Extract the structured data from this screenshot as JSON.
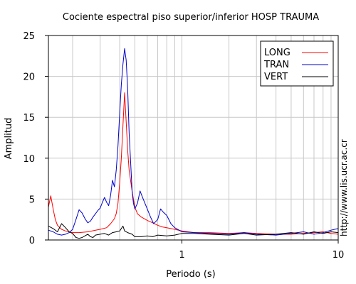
{
  "chart_data": {
    "type": "line",
    "title": "Cociente espectral piso superior/inferior  HOSP TRAUMA",
    "xlabel": "Periodo (s)",
    "ylabel": "Amplitud",
    "xscale": "log",
    "xlim": [
      0.14,
      10
    ],
    "ylim": [
      0,
      25
    ],
    "xticks": [
      {
        "v": 1,
        "label": "1"
      },
      {
        "v": 10,
        "label": "10"
      }
    ],
    "yticks": [
      0,
      5,
      10,
      15,
      20,
      25
    ],
    "grid": true,
    "legend_position": "top-right",
    "series": [
      {
        "name": "LONG",
        "color": "#ff0000",
        "points": [
          [
            0.14,
            4.0
          ],
          [
            0.145,
            5.4
          ],
          [
            0.15,
            3.8
          ],
          [
            0.155,
            2.5
          ],
          [
            0.16,
            1.8
          ],
          [
            0.17,
            1.3
          ],
          [
            0.18,
            1.1
          ],
          [
            0.2,
            0.9
          ],
          [
            0.22,
            0.9
          ],
          [
            0.25,
            1.0
          ],
          [
            0.28,
            1.2
          ],
          [
            0.3,
            1.3
          ],
          [
            0.33,
            1.5
          ],
          [
            0.35,
            2.0
          ],
          [
            0.37,
            2.6
          ],
          [
            0.38,
            3.2
          ],
          [
            0.39,
            4.5
          ],
          [
            0.4,
            7.0
          ],
          [
            0.41,
            10.0
          ],
          [
            0.42,
            14.0
          ],
          [
            0.43,
            18.0
          ],
          [
            0.44,
            14.5
          ],
          [
            0.45,
            11.0
          ],
          [
            0.46,
            8.5
          ],
          [
            0.48,
            6.0
          ],
          [
            0.5,
            4.0
          ],
          [
            0.52,
            3.2
          ],
          [
            0.55,
            2.8
          ],
          [
            0.6,
            2.4
          ],
          [
            0.65,
            2.1
          ],
          [
            0.7,
            1.8
          ],
          [
            0.75,
            1.6
          ],
          [
            0.8,
            1.5
          ],
          [
            0.9,
            1.3
          ],
          [
            1.0,
            1.1
          ],
          [
            1.2,
            0.9
          ],
          [
            1.5,
            0.9
          ],
          [
            2.0,
            0.8
          ],
          [
            2.5,
            0.9
          ],
          [
            3.0,
            0.8
          ],
          [
            4.0,
            0.7
          ],
          [
            5.0,
            0.7
          ],
          [
            6.0,
            0.8
          ],
          [
            7.0,
            0.9
          ],
          [
            8.0,
            1.0
          ],
          [
            9.0,
            0.8
          ],
          [
            10.0,
            0.7
          ]
        ]
      },
      {
        "name": "TRAN",
        "color": "#0000cc",
        "points": [
          [
            0.14,
            1.2
          ],
          [
            0.15,
            1.0
          ],
          [
            0.16,
            0.7
          ],
          [
            0.17,
            0.6
          ],
          [
            0.18,
            0.7
          ],
          [
            0.19,
            0.9
          ],
          [
            0.2,
            1.3
          ],
          [
            0.21,
            2.5
          ],
          [
            0.22,
            3.7
          ],
          [
            0.23,
            3.3
          ],
          [
            0.24,
            2.6
          ],
          [
            0.25,
            2.1
          ],
          [
            0.26,
            2.3
          ],
          [
            0.27,
            2.8
          ],
          [
            0.28,
            3.2
          ],
          [
            0.29,
            3.6
          ],
          [
            0.3,
            3.9
          ],
          [
            0.31,
            4.6
          ],
          [
            0.32,
            5.2
          ],
          [
            0.33,
            4.6
          ],
          [
            0.34,
            4.2
          ],
          [
            0.35,
            5.5
          ],
          [
            0.36,
            7.3
          ],
          [
            0.37,
            6.5
          ],
          [
            0.38,
            8.5
          ],
          [
            0.39,
            11.5
          ],
          [
            0.4,
            15.5
          ],
          [
            0.41,
            19.0
          ],
          [
            0.42,
            21.5
          ],
          [
            0.43,
            23.4
          ],
          [
            0.44,
            22.0
          ],
          [
            0.45,
            18.5
          ],
          [
            0.46,
            13.0
          ],
          [
            0.47,
            9.5
          ],
          [
            0.48,
            6.0
          ],
          [
            0.49,
            4.5
          ],
          [
            0.5,
            3.8
          ],
          [
            0.52,
            4.5
          ],
          [
            0.54,
            6.0
          ],
          [
            0.56,
            5.2
          ],
          [
            0.58,
            4.5
          ],
          [
            0.6,
            3.8
          ],
          [
            0.63,
            2.8
          ],
          [
            0.66,
            2.0
          ],
          [
            0.7,
            2.5
          ],
          [
            0.73,
            3.8
          ],
          [
            0.76,
            3.4
          ],
          [
            0.8,
            3.0
          ],
          [
            0.85,
            2.0
          ],
          [
            0.9,
            1.5
          ],
          [
            1.0,
            1.0
          ],
          [
            1.2,
            0.9
          ],
          [
            1.5,
            0.8
          ],
          [
            2.0,
            0.7
          ],
          [
            2.5,
            0.9
          ],
          [
            3.0,
            0.7
          ],
          [
            4.0,
            0.6
          ],
          [
            5.0,
            0.8
          ],
          [
            6.0,
            1.0
          ],
          [
            7.0,
            0.7
          ],
          [
            8.0,
            0.9
          ],
          [
            9.0,
            1.2
          ],
          [
            10.0,
            1.4
          ]
        ]
      },
      {
        "name": "VERT",
        "color": "#000000",
        "points": [
          [
            0.14,
            1.7
          ],
          [
            0.15,
            1.4
          ],
          [
            0.16,
            1.0
          ],
          [
            0.17,
            2.0
          ],
          [
            0.18,
            1.5
          ],
          [
            0.19,
            1.0
          ],
          [
            0.2,
            0.8
          ],
          [
            0.21,
            0.3
          ],
          [
            0.22,
            0.2
          ],
          [
            0.23,
            0.3
          ],
          [
            0.24,
            0.5
          ],
          [
            0.25,
            0.7
          ],
          [
            0.26,
            0.4
          ],
          [
            0.27,
            0.3
          ],
          [
            0.28,
            0.6
          ],
          [
            0.3,
            0.7
          ],
          [
            0.32,
            0.8
          ],
          [
            0.34,
            0.6
          ],
          [
            0.36,
            0.9
          ],
          [
            0.38,
            1.0
          ],
          [
            0.4,
            1.1
          ],
          [
            0.42,
            1.7
          ],
          [
            0.43,
            1.1
          ],
          [
            0.45,
            0.9
          ],
          [
            0.48,
            0.7
          ],
          [
            0.5,
            0.4
          ],
          [
            0.55,
            0.4
          ],
          [
            0.6,
            0.5
          ],
          [
            0.65,
            0.4
          ],
          [
            0.7,
            0.6
          ],
          [
            0.8,
            0.5
          ],
          [
            0.9,
            0.6
          ],
          [
            1.0,
            0.8
          ],
          [
            1.2,
            0.8
          ],
          [
            1.5,
            0.7
          ],
          [
            2.0,
            0.6
          ],
          [
            2.5,
            0.8
          ],
          [
            3.0,
            0.6
          ],
          [
            4.0,
            0.7
          ],
          [
            5.0,
            0.9
          ],
          [
            6.0,
            0.7
          ],
          [
            7.0,
            1.0
          ],
          [
            8.0,
            0.8
          ],
          [
            9.0,
            1.0
          ],
          [
            10.0,
            0.9
          ]
        ]
      }
    ]
  },
  "side_text": "http://www.lis.ucr.ac.cr"
}
